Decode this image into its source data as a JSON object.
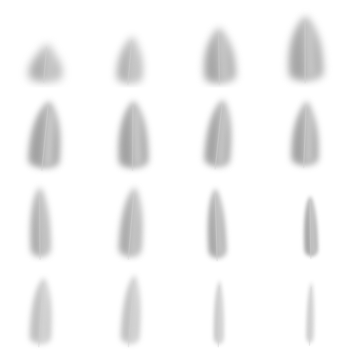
{
  "image": {
    "description_kind": "sprite-sheet",
    "rows": 4,
    "columns": 4,
    "background": "#ffffff",
    "colors": {
      "feather_dark": "#8a8a8a",
      "feather_mid": "#a9a9a9",
      "feather_light": "#d2d2d2",
      "highlight": "#e8e8e8"
    },
    "frames": [
      {
        "id": "frame-1",
        "icon": "feather-sprite"
      },
      {
        "id": "frame-2",
        "icon": "feather-sprite"
      },
      {
        "id": "frame-3",
        "icon": "feather-sprite"
      },
      {
        "id": "frame-4",
        "icon": "feather-sprite"
      },
      {
        "id": "frame-5",
        "icon": "feather-sprite"
      },
      {
        "id": "frame-6",
        "icon": "feather-sprite"
      },
      {
        "id": "frame-7",
        "icon": "feather-sprite"
      },
      {
        "id": "frame-8",
        "icon": "feather-sprite"
      },
      {
        "id": "frame-9",
        "icon": "feather-sprite"
      },
      {
        "id": "frame-10",
        "icon": "feather-sprite"
      },
      {
        "id": "frame-11",
        "icon": "feather-sprite"
      },
      {
        "id": "frame-12",
        "icon": "feather-sprite"
      },
      {
        "id": "frame-13",
        "icon": "feather-sprite"
      },
      {
        "id": "frame-14",
        "icon": "feather-sprite"
      },
      {
        "id": "frame-15",
        "icon": "feather-sprite"
      },
      {
        "id": "frame-16",
        "icon": "feather-sprite"
      }
    ]
  }
}
